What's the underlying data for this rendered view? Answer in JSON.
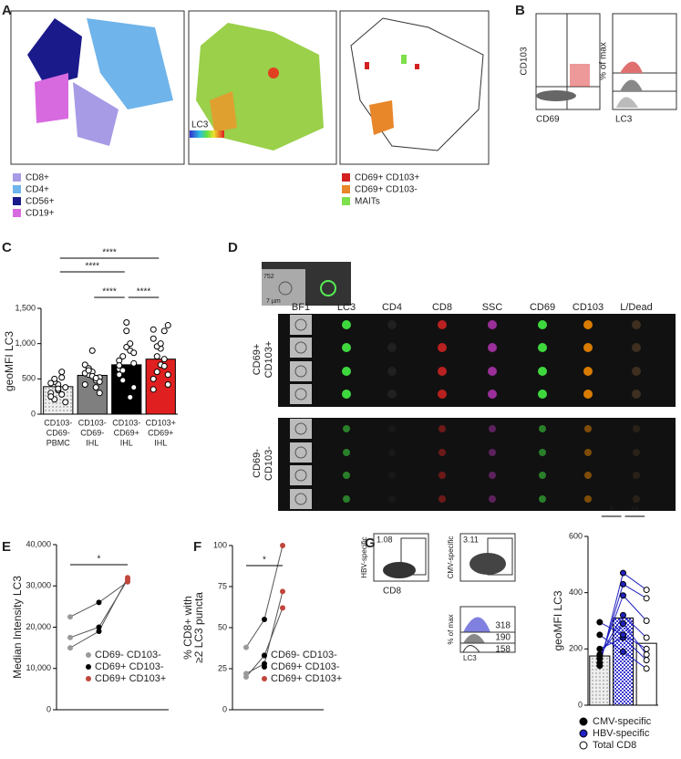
{
  "panel_labels": [
    "A",
    "B",
    "C",
    "D",
    "E",
    "F",
    "G"
  ],
  "panel_a": {
    "scale_label": "LC3",
    "legend_left": [
      {
        "name": "CD8+",
        "color": "#a79be6"
      },
      {
        "name": "CD4+",
        "color": "#6fb4ea"
      },
      {
        "name": "CD56+",
        "color": "#1a1a8a"
      },
      {
        "name": "CD19+",
        "color": "#d86ae0"
      }
    ],
    "legend_right": [
      {
        "name": "CD69+ CD103+",
        "color": "#d42020"
      },
      {
        "name": "CD69+ CD103-",
        "color": "#e8862a"
      },
      {
        "name": "MAITs",
        "color": "#7ee04a"
      }
    ]
  },
  "panel_b": {
    "y_label": "CD103",
    "x_label": "CD69",
    "hist_y_label": "% of max",
    "hist_x_label": "LC3"
  },
  "panel_d": {
    "event_id": "752",
    "scale_bar": "7 µm",
    "channels": [
      "BF1",
      "LC3",
      "CD4",
      "CD8",
      "SSC",
      "CD69",
      "CD103",
      "L/Dead"
    ],
    "groups": [
      [
        "CD69+",
        "CD103+"
      ],
      [
        "CD69-",
        "CD103-"
      ]
    ]
  },
  "panel_g": {
    "y_labels": [
      "HBV-specific",
      "CMV-specific"
    ],
    "x_label": "CD8",
    "gates": [
      "1.08",
      "3.11"
    ],
    "hist_y_label": "% of max",
    "hist_x_label": "LC3",
    "hist_values": [
      "318",
      "190",
      "158"
    ]
  },
  "chart_data": [
    {
      "type": "bar",
      "y_label": [
        "geoMFI LC3"
      ],
      "categories": [
        [
          "CD103-",
          "CD69-",
          "PBMC"
        ],
        [
          "CD103-",
          "CD69-",
          "IHL"
        ],
        [
          "CD103-",
          "CD69+",
          "IHL"
        ],
        [
          "CD103+",
          "CD69+",
          "IHL"
        ]
      ],
      "values": [
        390,
        550,
        700,
        780
      ],
      "colors": [
        "#d9d9d9",
        "#7f7f7f",
        "#000000",
        "#e02020"
      ],
      "patterns": [
        "dots",
        "solid",
        "solid",
        "solid"
      ],
      "label_colors": [
        "#999999",
        "#555555",
        "#000000",
        "#e02020"
      ],
      "point_color": "#ffffff",
      "points": [
        [
          300,
          210,
          420,
          520,
          380,
          250,
          460,
          340,
          600,
          170,
          440,
          500,
          360,
          280
        ],
        [
          420,
          560,
          600,
          480,
          520,
          700,
          650,
          540,
          380,
          460,
          580,
          620,
          900,
          510,
          300
        ],
        [
          640,
          820,
          950,
          1000,
          720,
          560,
          480,
          1180,
          900,
          380,
          760,
          620,
          1300,
          240,
          870,
          690
        ],
        [
          1070,
          600,
          930,
          780,
          1260,
          500,
          820,
          700,
          1180,
          560,
          350,
          960,
          1000,
          680,
          420,
          1200
        ]
      ],
      "ylim": [
        0,
        1500
      ],
      "yticks": [
        0,
        {
          "value": 500,
          "label": "500"
        },
        {
          "value": 1000,
          "label": "1,000"
        },
        {
          "value": 1500,
          "label": "1,500"
        }
      ],
      "significance": [
        "****",
        "****",
        "****",
        "****"
      ]
    },
    {
      "type": "line",
      "y_label": [
        "Median Intensity LC3"
      ],
      "series": [
        {
          "name": "CD69-  CD103-",
          "color": "#9a9a9a",
          "values": [
            22500,
            15000,
            17500
          ]
        },
        {
          "name": "CD69+ CD103-",
          "color": "#000000",
          "values": [
            26000,
            19000,
            20000
          ]
        },
        {
          "name": "CD69+ CD103+",
          "color": "#c0463c",
          "values": [
            31000,
            32000,
            31500
          ]
        }
      ],
      "ylim": [
        0,
        40000
      ],
      "yticks": [
        0,
        {
          "value": 10000,
          "label": "10,000"
        },
        {
          "value": 20000,
          "label": "20,000"
        },
        {
          "value": 30000,
          "label": "30,000"
        },
        {
          "value": 40000,
          "label": "40,000"
        }
      ],
      "significance": [
        "*"
      ]
    },
    {
      "type": "line",
      "y_label": [
        "% CD8+ with",
        "≥2 LC3 puncta"
      ],
      "series": [
        {
          "name": "CD69-  CD103-",
          "color": "#9a9a9a",
          "values": [
            38,
            22,
            20
          ]
        },
        {
          "name": "CD69+ CD103-",
          "color": "#000000",
          "values": [
            55,
            28,
            33
          ]
        },
        {
          "name": "CD69+ CD103+",
          "color": "#c0463c",
          "values": [
            100,
            72,
            62
          ]
        }
      ],
      "ylim": [
        0,
        100
      ],
      "yticks": [
        0,
        25,
        50,
        75,
        100
      ],
      "significance": [
        "*"
      ]
    },
    {
      "type": "bar",
      "y_label": [
        "geoMFI LC3"
      ],
      "categories": [
        null,
        null,
        null
      ],
      "values": [
        175,
        310,
        220
      ],
      "colors": [
        "#cfcfcf",
        "#3b3bd0",
        "#ffffff"
      ],
      "patterns": [
        "dots",
        "checks",
        "solid"
      ],
      "legend": [
        "CMV-specific",
        "HBV-specific",
        "Total CD8"
      ],
      "point_colors": [
        "#000000",
        "#2020c0",
        "#ffffff"
      ],
      "points": [
        [
          140,
          150,
          165,
          175,
          180,
          200,
          250,
          295
        ],
        [
          470,
          430,
          390,
          320,
          290,
          240,
          190,
          250
        ],
        [
          410,
          380,
          300,
          240,
          180,
          160,
          130,
          200
        ]
      ],
      "ylim": [
        0,
        600
      ],
      "yticks": [
        0,
        200,
        400,
        600
      ],
      "significance": [
        "*",
        "**"
      ]
    }
  ]
}
